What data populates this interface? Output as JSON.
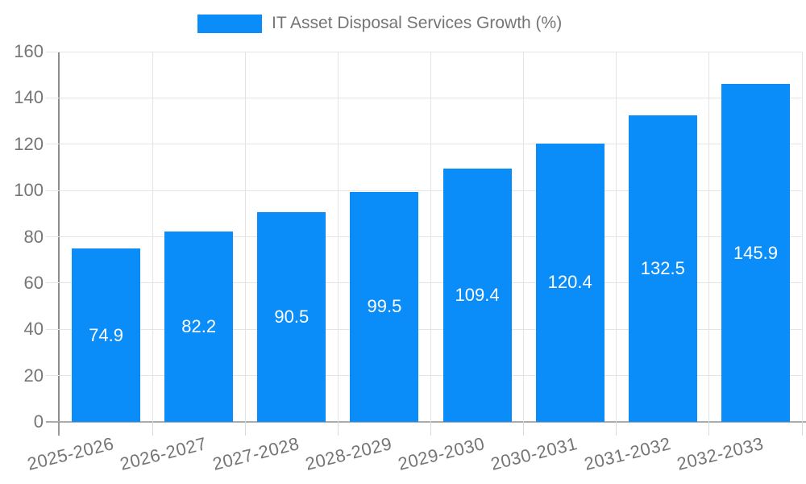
{
  "chart_data": {
    "type": "bar",
    "title": "IT Asset Disposal Services Growth (%)",
    "categories": [
      "2025-2026",
      "2026-2027",
      "2027-2028",
      "2028-2029",
      "2029-2030",
      "2030-2031",
      "2031-2032",
      "2032-2033"
    ],
    "values": [
      74.9,
      82.2,
      90.5,
      99.5,
      109.4,
      120.4,
      132.5,
      145.9
    ],
    "value_labels": [
      "74.9",
      "82.2",
      "90.5",
      "99.5",
      "109.4",
      "120.4",
      "132.5",
      "145.9"
    ],
    "yticks": [
      0,
      20,
      40,
      60,
      80,
      100,
      120,
      140,
      160
    ],
    "ylim": [
      0,
      160
    ],
    "xlabel": "",
    "ylabel": "",
    "grid": true,
    "legend_position": "top",
    "value_label_position": "inside-center"
  },
  "legend": {
    "series_label": "IT Asset Disposal Services Growth (%)"
  },
  "colors": {
    "bar": "#0a8df8",
    "value_label_text": "#ffffff",
    "axis_text": "#757575",
    "gridline": "#e4e4e4",
    "axis_line": "#8c8c8c",
    "baseline": "#ababab",
    "background": "#ffffff"
  }
}
